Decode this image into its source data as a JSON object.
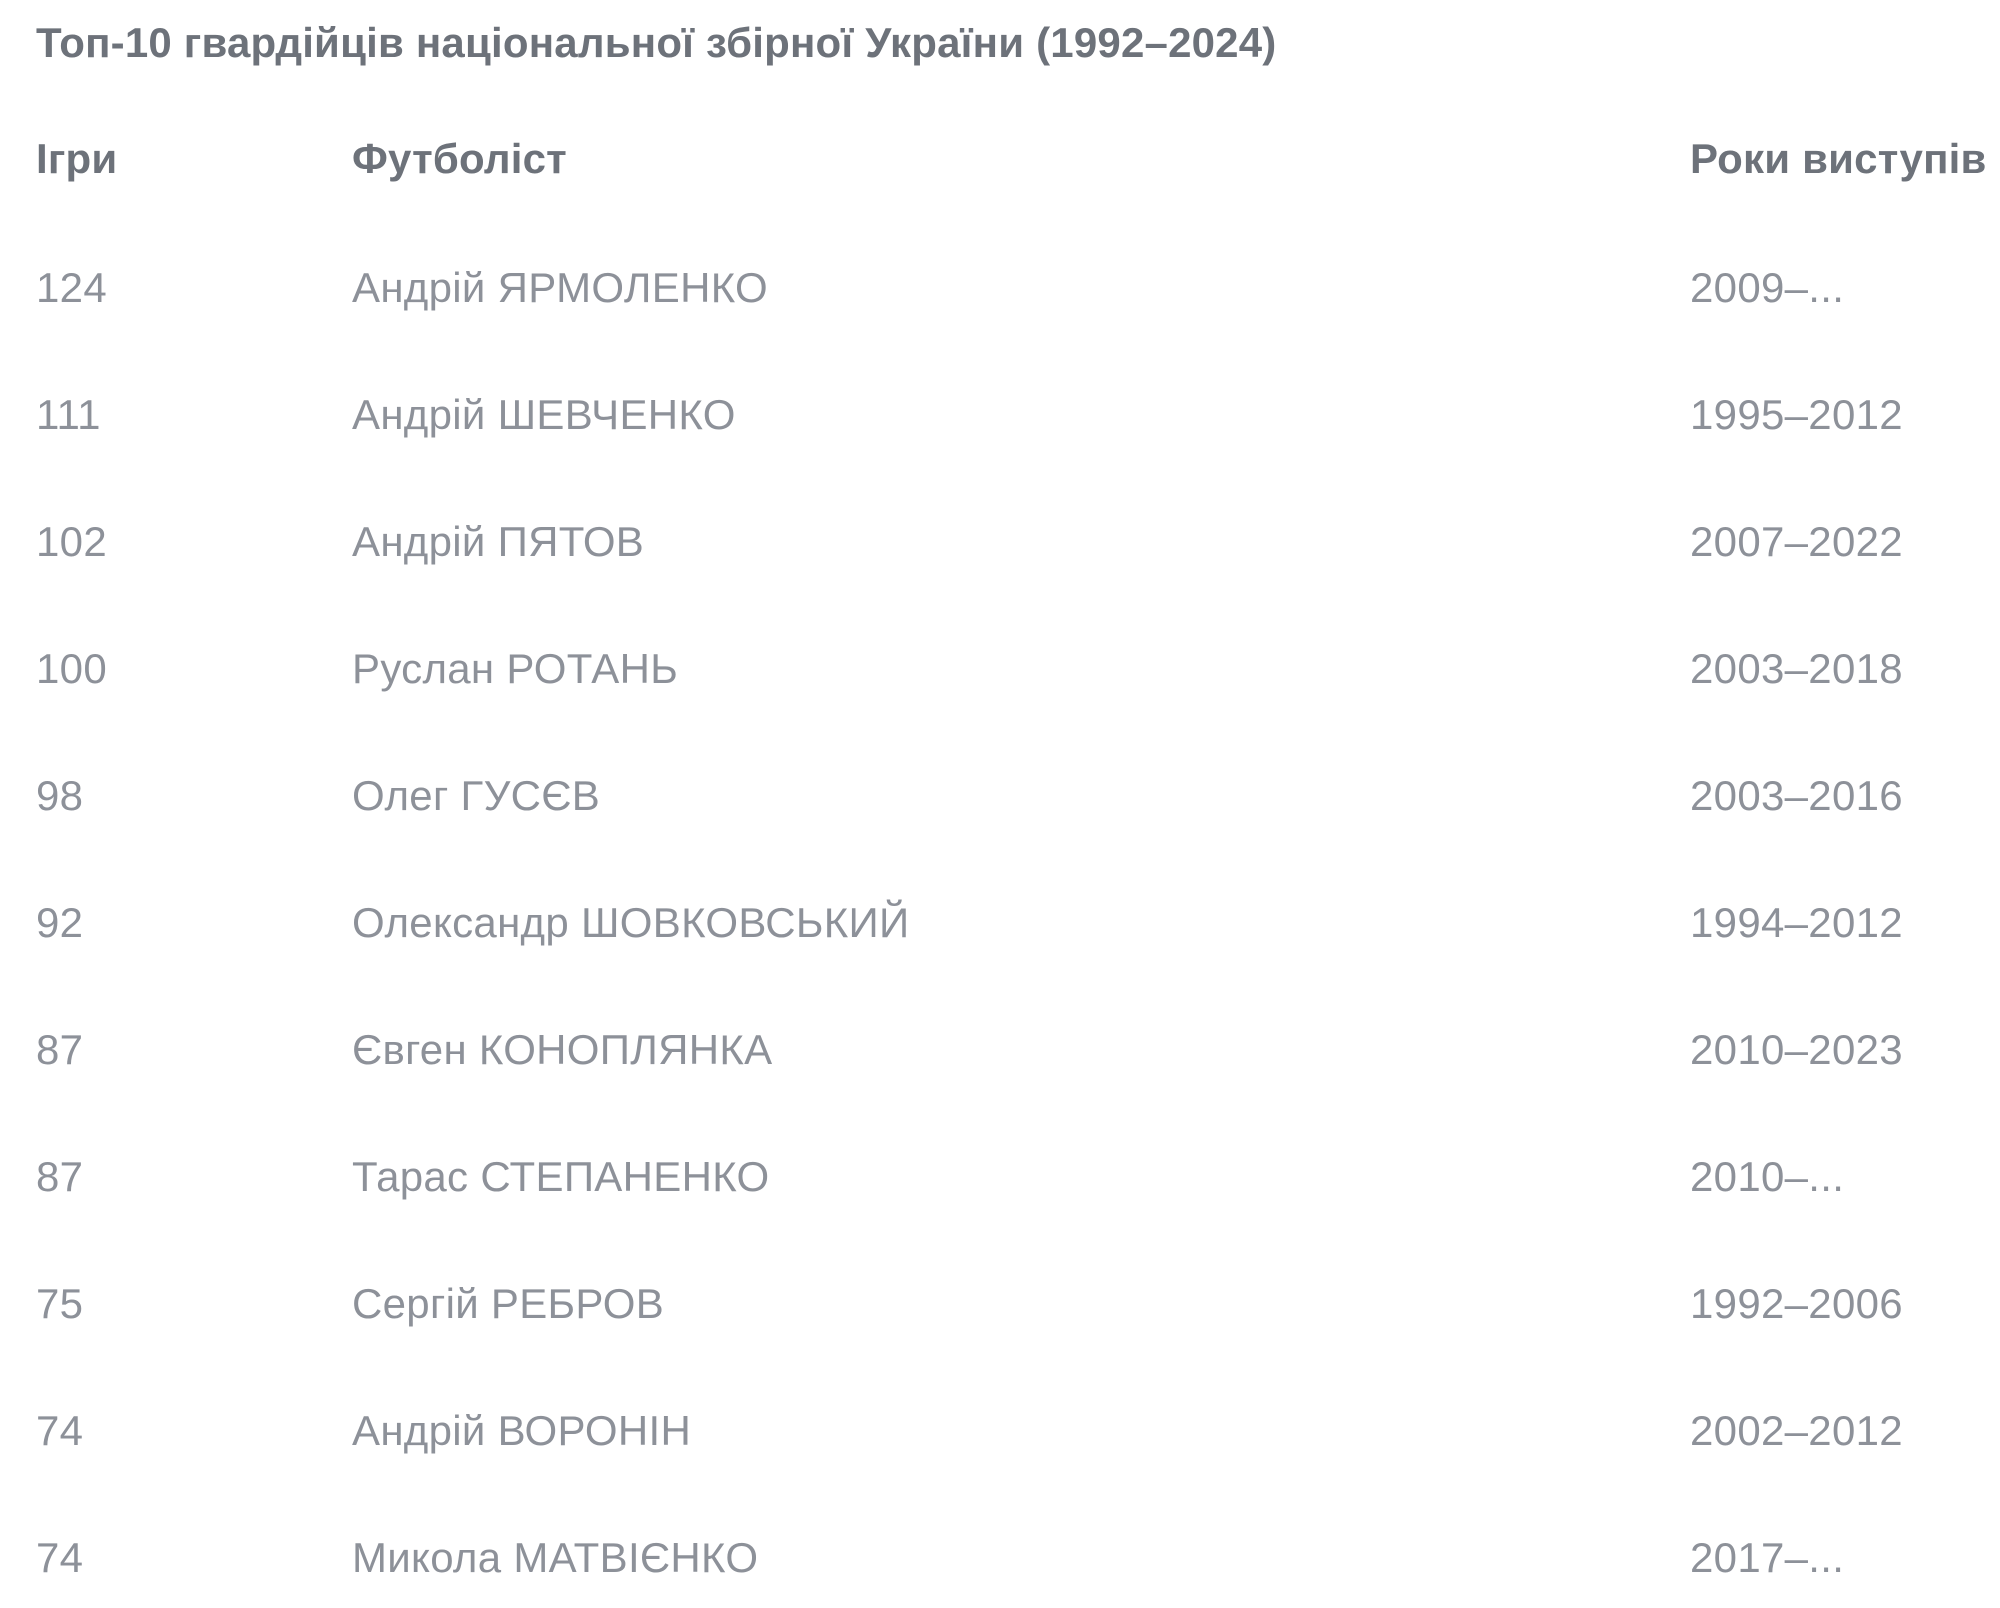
{
  "title": "Топ-10 гвардійців національної збірної України (1992–2024)",
  "colors": {
    "background": "#ffffff",
    "heading_text": "#6d727a",
    "body_text": "#8d9199"
  },
  "table": {
    "headers": {
      "games": "Ігри",
      "player": "Футболіст",
      "years": "Роки виступів"
    },
    "rows": [
      {
        "games": "124",
        "player": "Андрій ЯРМОЛЕНКО",
        "years": "2009–..."
      },
      {
        "games": "111",
        "player": "Андрій ШЕВЧЕНКО",
        "years": "1995–2012"
      },
      {
        "games": "102",
        "player": "Андрій ПЯТОВ",
        "years": "2007–2022"
      },
      {
        "games": "100",
        "player": "Руслан РОТАНЬ",
        "years": "2003–2018"
      },
      {
        "games": "98",
        "player": "Олег ГУСЄВ",
        "years": "2003–2016"
      },
      {
        "games": "92",
        "player": "Олександр ШОВКОВСЬКИЙ",
        "years": "1994–2012"
      },
      {
        "games": "87",
        "player": "Євген КОНОПЛЯНКА",
        "years": "2010–2023"
      },
      {
        "games": "87",
        "player": "Тарас СТЕПАНЕНКО",
        "years": "2010–..."
      },
      {
        "games": "75",
        "player": "Сергій РЕБРОВ",
        "years": "1992–2006"
      },
      {
        "games": "74",
        "player": "Андрій ВОРОНІН",
        "years": "2002–2012"
      },
      {
        "games": "74",
        "player": "Микола МАТВІЄНКО",
        "years": "2017–..."
      }
    ]
  }
}
